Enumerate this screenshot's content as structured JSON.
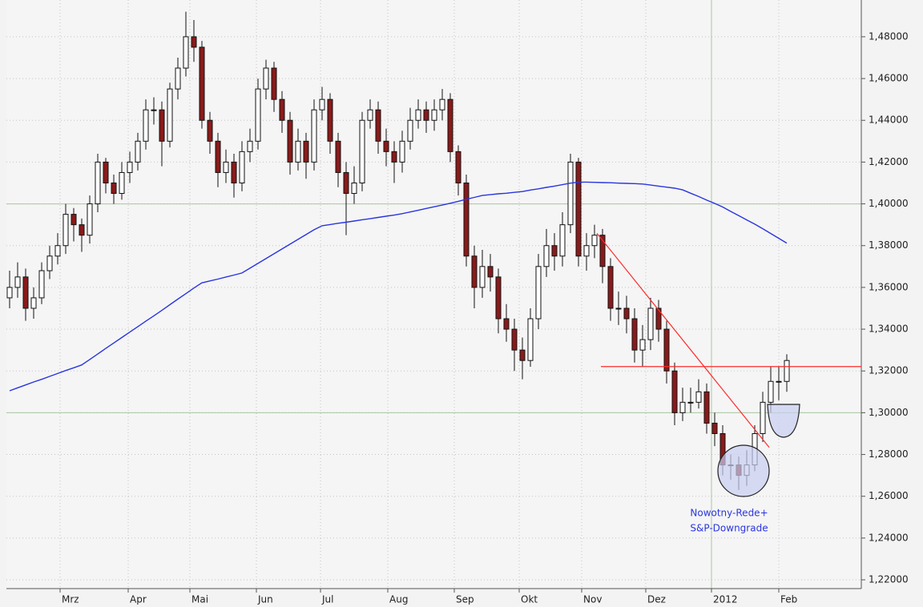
{
  "chart_data": {
    "type": "candlestick",
    "ylim": [
      1.2158,
      1.4976
    ],
    "yticks": [
      {
        "value": 1.48,
        "label": "1,48000"
      },
      {
        "value": 1.46,
        "label": "1,46000"
      },
      {
        "value": 1.44,
        "label": "1,44000"
      },
      {
        "value": 1.42,
        "label": "1,42000"
      },
      {
        "value": 1.4,
        "label": "1,40000"
      },
      {
        "value": 1.38,
        "label": "1,38000"
      },
      {
        "value": 1.36,
        "label": "1,36000"
      },
      {
        "value": 1.34,
        "label": "1,34000"
      },
      {
        "value": 1.32,
        "label": "1,32000"
      },
      {
        "value": 1.3,
        "label": "1,30000"
      },
      {
        "value": 1.28,
        "label": "1,28000"
      },
      {
        "value": 1.26,
        "label": "1,26000"
      },
      {
        "value": 1.24,
        "label": "1,24000"
      },
      {
        "value": 1.22,
        "label": "1,22000"
      }
    ],
    "xlim": [
      -0.4,
      106.3
    ],
    "xticks": [
      {
        "value": 6.3,
        "label": "Mrz"
      },
      {
        "value": 14.8,
        "label": "Apr"
      },
      {
        "value": 22.5,
        "label": "Mai"
      },
      {
        "value": 30.8,
        "label": "Jun"
      },
      {
        "value": 38.8,
        "label": "Jul"
      },
      {
        "value": 47.2,
        "label": "Aug"
      },
      {
        "value": 55.5,
        "label": "Sep"
      },
      {
        "value": 63.6,
        "label": "Okt"
      },
      {
        "value": 71.4,
        "label": "Nov"
      },
      {
        "value": 79.4,
        "label": "Dez"
      },
      {
        "value": 87.6,
        "label": "2012"
      },
      {
        "value": 96,
        "label": "Feb"
      }
    ],
    "grid": true,
    "up_color": "#ffffff",
    "down_color": "#8b1a1a",
    "open": [
      1.355,
      1.36,
      1.365,
      1.35,
      1.355,
      1.368,
      1.375,
      1.38,
      1.395,
      1.39,
      1.385,
      1.4,
      1.42,
      1.41,
      1.405,
      1.415,
      1.42,
      1.43,
      1.445,
      1.445,
      1.43,
      1.455,
      1.465,
      1.48,
      1.475,
      1.44,
      1.43,
      1.415,
      1.42,
      1.41,
      1.425,
      1.43,
      1.455,
      1.465,
      1.45,
      1.44,
      1.42,
      1.43,
      1.42,
      1.445,
      1.45,
      1.43,
      1.415,
      1.405,
      1.41,
      1.44,
      1.445,
      1.43,
      1.425,
      1.42,
      1.43,
      1.44,
      1.445,
      1.44,
      1.445,
      1.45,
      1.425,
      1.41,
      1.375,
      1.36,
      1.37,
      1.365,
      1.345,
      1.34,
      1.33,
      1.325,
      1.345,
      1.37,
      1.38,
      1.375,
      1.39,
      1.42,
      1.375,
      1.38,
      1.385,
      1.37,
      1.35,
      1.35,
      1.345,
      1.33,
      1.335,
      1.35,
      1.34,
      1.32,
      1.3,
      1.305,
      1.305,
      1.31,
      1.295,
      1.29,
      1.275,
      1.275,
      1.27,
      1.275,
      1.29,
      1.305,
      1.315,
      1.315
    ],
    "high": [
      1.368,
      1.372,
      1.369,
      1.36,
      1.372,
      1.38,
      1.386,
      1.4,
      1.398,
      1.393,
      1.404,
      1.424,
      1.422,
      1.414,
      1.42,
      1.425,
      1.434,
      1.45,
      1.451,
      1.449,
      1.458,
      1.47,
      1.492,
      1.488,
      1.478,
      1.444,
      1.434,
      1.426,
      1.424,
      1.43,
      1.436,
      1.46,
      1.469,
      1.468,
      1.454,
      1.444,
      1.436,
      1.434,
      1.45,
      1.456,
      1.453,
      1.434,
      1.42,
      1.418,
      1.444,
      1.45,
      1.449,
      1.436,
      1.43,
      1.435,
      1.446,
      1.45,
      1.449,
      1.45,
      1.455,
      1.453,
      1.428,
      1.414,
      1.38,
      1.378,
      1.376,
      1.369,
      1.352,
      1.345,
      1.336,
      1.35,
      1.376,
      1.388,
      1.386,
      1.396,
      1.424,
      1.422,
      1.386,
      1.39,
      1.388,
      1.374,
      1.358,
      1.356,
      1.35,
      1.342,
      1.355,
      1.354,
      1.344,
      1.324,
      1.312,
      1.312,
      1.316,
      1.314,
      1.3,
      1.294,
      1.28,
      1.279,
      1.282,
      1.294,
      1.31,
      1.322,
      1.322,
      1.328
    ],
    "low": [
      1.35,
      1.355,
      1.344,
      1.345,
      1.352,
      1.364,
      1.371,
      1.376,
      1.382,
      1.377,
      1.381,
      1.396,
      1.405,
      1.4,
      1.402,
      1.41,
      1.416,
      1.426,
      1.438,
      1.418,
      1.427,
      1.45,
      1.461,
      1.468,
      1.436,
      1.424,
      1.408,
      1.41,
      1.403,
      1.406,
      1.42,
      1.426,
      1.45,
      1.444,
      1.434,
      1.414,
      1.416,
      1.412,
      1.416,
      1.44,
      1.424,
      1.408,
      1.385,
      1.4,
      1.406,
      1.436,
      1.424,
      1.418,
      1.41,
      1.415,
      1.426,
      1.436,
      1.434,
      1.435,
      1.44,
      1.42,
      1.404,
      1.37,
      1.35,
      1.355,
      1.358,
      1.338,
      1.334,
      1.32,
      1.316,
      1.322,
      1.34,
      1.365,
      1.368,
      1.37,
      1.386,
      1.37,
      1.368,
      1.374,
      1.362,
      1.344,
      1.342,
      1.338,
      1.324,
      1.322,
      1.33,
      1.334,
      1.314,
      1.294,
      1.296,
      1.3,
      1.302,
      1.29,
      1.284,
      1.27,
      1.268,
      1.263,
      1.265,
      1.272,
      1.286,
      1.3,
      1.306,
      1.31
    ],
    "close": [
      1.36,
      1.365,
      1.35,
      1.355,
      1.368,
      1.375,
      1.38,
      1.395,
      1.39,
      1.385,
      1.4,
      1.42,
      1.41,
      1.405,
      1.415,
      1.42,
      1.43,
      1.445,
      1.445,
      1.43,
      1.455,
      1.465,
      1.48,
      1.475,
      1.44,
      1.43,
      1.415,
      1.42,
      1.41,
      1.425,
      1.43,
      1.455,
      1.465,
      1.45,
      1.44,
      1.42,
      1.43,
      1.42,
      1.445,
      1.45,
      1.43,
      1.415,
      1.405,
      1.41,
      1.44,
      1.445,
      1.43,
      1.425,
      1.42,
      1.43,
      1.44,
      1.445,
      1.44,
      1.445,
      1.45,
      1.425,
      1.41,
      1.375,
      1.36,
      1.37,
      1.365,
      1.345,
      1.34,
      1.33,
      1.325,
      1.345,
      1.37,
      1.38,
      1.375,
      1.39,
      1.42,
      1.375,
      1.38,
      1.385,
      1.37,
      1.35,
      1.35,
      1.345,
      1.33,
      1.335,
      1.35,
      1.34,
      1.32,
      1.3,
      1.305,
      1.305,
      1.31,
      1.295,
      1.29,
      1.275,
      1.275,
      1.27,
      1.275,
      1.29,
      1.305,
      1.315,
      1.315,
      1.325
    ],
    "ma": {
      "color": "#2a35e0",
      "values": [
        1.3105,
        1.3119,
        1.3133,
        1.3147,
        1.316,
        1.3174,
        1.3188,
        1.3202,
        1.3215,
        1.3229,
        1.3255,
        1.3281,
        1.3308,
        1.3334,
        1.336,
        1.3386,
        1.3412,
        1.3438,
        1.3464,
        1.349,
        1.3517,
        1.3544,
        1.357,
        1.3597,
        1.3622,
        1.3631,
        1.364,
        1.365,
        1.3659,
        1.3669,
        1.3692,
        1.3715,
        1.3738,
        1.3761,
        1.3784,
        1.3807,
        1.383,
        1.3853,
        1.3876,
        1.3895,
        1.3901,
        1.3907,
        1.3912,
        1.3918,
        1.3924,
        1.3929,
        1.3935,
        1.3941,
        1.3946,
        1.3953,
        1.3961,
        1.3969,
        1.3978,
        1.3986,
        1.3994,
        1.4003,
        1.4012,
        1.4022,
        1.4031,
        1.404,
        1.4044,
        1.4048,
        1.4051,
        1.4055,
        1.4059,
        1.4066,
        1.4072,
        1.4079,
        1.4085,
        1.4092,
        1.4099,
        1.4104,
        1.4104,
        1.4103,
        1.4102,
        1.4101,
        1.4099,
        1.4098,
        1.4097,
        1.4095,
        1.409,
        1.4085,
        1.408,
        1.4075,
        1.4067,
        1.4051,
        1.4035,
        1.4018,
        1.4002,
        1.3985,
        1.3964,
        1.3944,
        1.3923,
        1.3903,
        1.3881,
        1.3858,
        1.3835,
        1.3812
      ]
    },
    "trendlines": [
      {
        "color": "#ff2a2a",
        "x": [
          73.3,
          94.8
        ],
        "y": [
          1.3859,
          1.2834
        ]
      },
      {
        "color": "#ff2a2a",
        "x": [
          73.8,
          106.3
        ],
        "y": [
          1.3221,
          1.3221
        ]
      }
    ],
    "ref_lines": {
      "color": "#a8c8a0",
      "y": [
        1.4,
        1.3
      ],
      "x": [
        87.6
      ]
    },
    "annotation": {
      "color": "#2a35e0",
      "lines": [
        "Nowotny-Rede+",
        "S&P-Downgrade"
      ]
    }
  }
}
